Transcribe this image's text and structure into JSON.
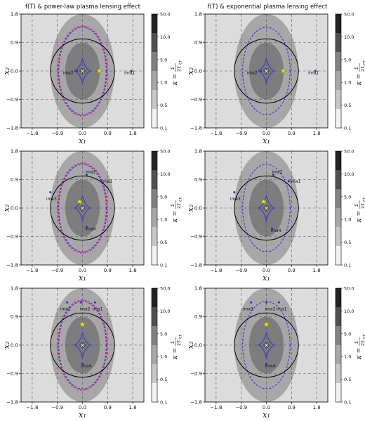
{
  "columns": [
    {
      "title": "f(T) & power-law plasma lensing effect"
    },
    {
      "title": "f(T) & exponential plasma lensing effect"
    }
  ],
  "axes": {
    "xlabel": "x₁",
    "ylabel": "x₂",
    "ticks": [
      "−1.8",
      "−0.9",
      "0.0",
      "0.9",
      "1.8"
    ],
    "tick_values": [
      -1.8,
      -0.9,
      0.0,
      0.9,
      1.8
    ]
  },
  "colorbar": {
    "label": "κ = Σ/Σcr",
    "label_parts": {
      "kappa": "κ =",
      "num": "Σ",
      "den": "2Σ",
      "den_sub": "cr"
    },
    "ticks": [
      "0.1",
      "0.5",
      "1.0",
      "5.0",
      "10.0",
      "50.0"
    ],
    "tick_values": [
      0.1,
      0.5,
      1.0,
      5.0,
      10.0,
      50.0
    ],
    "colors": [
      "#f2f2f2",
      "#c8c8c8",
      "#a8a8a8",
      "#828282",
      "#505050",
      "#222222"
    ]
  },
  "colors": {
    "background": "#dcdcdc",
    "kappa_outer": "#a7a7a7",
    "kappa_inner": "#7d7d7d",
    "kappa_core": "#5a5a5a",
    "caustic": "#3b3bd6",
    "critical_curve_blue": "#2a2ae0",
    "critical_curve_magenta": "#d21f8a",
    "circle": "#000000",
    "source_star": "#e6e600",
    "image_dot": "#2a2ae0"
  },
  "chart_data": [
    {
      "type": "scatter",
      "panel": "row1-left",
      "title": "f(T) & power-law plasma lensing effect",
      "xlabel": "x₁",
      "ylabel": "x₂",
      "xlim": [
        -2.2,
        2.2
      ],
      "ylim": [
        -1.8,
        1.8
      ],
      "grid": true,
      "critical_curves": [
        "blue",
        "magenta"
      ],
      "source": {
        "x": 0.6,
        "y": 0.0
      },
      "images": [
        {
          "label": "ima1",
          "x": 1.75,
          "y": 0.0,
          "label_dx": -0.25,
          "label_dy": -0.1
        },
        {
          "label": "ima2",
          "x": -0.2,
          "y": 0.0,
          "label_dx": -0.5,
          "label_dy": -0.1
        }
      ]
    },
    {
      "type": "scatter",
      "panel": "row1-right",
      "title": "f(T) & exponential plasma lensing effect",
      "xlabel": "x₁",
      "ylabel": "x₂",
      "xlim": [
        -2.2,
        2.2
      ],
      "ylim": [
        -1.8,
        1.8
      ],
      "grid": true,
      "critical_curves": [
        "blue"
      ],
      "source": {
        "x": 0.6,
        "y": 0.0
      },
      "images": [
        {
          "label": "ima1",
          "x": 1.75,
          "y": 0.0,
          "label_dx": -0.25,
          "label_dy": -0.1
        },
        {
          "label": "ima2",
          "x": -0.2,
          "y": 0.0,
          "label_dx": -0.5,
          "label_dy": -0.1
        }
      ]
    },
    {
      "type": "scatter",
      "panel": "row2-left",
      "xlabel": "x₁",
      "ylabel": "x₂",
      "xlim": [
        -2.2,
        2.2
      ],
      "ylim": [
        -1.8,
        1.8
      ],
      "grid": true,
      "critical_curves": [
        "blue",
        "magenta"
      ],
      "source": {
        "x": -0.1,
        "y": 0.2
      },
      "images": [
        {
          "label": "ima1",
          "x": 0.65,
          "y": 0.85,
          "label_dx": 0.05,
          "label_dy": -0.05
        },
        {
          "label": "ima2",
          "x": 0.15,
          "y": 1.05,
          "label_dx": -0.05,
          "label_dy": 0.05
        },
        {
          "label": "ima3",
          "x": -1.15,
          "y": 0.5,
          "label_dx": -0.15,
          "label_dy": -0.25
        },
        {
          "label": "ima4",
          "x": 0.15,
          "y": -0.6,
          "label_dx": -0.05,
          "label_dy": -0.1
        }
      ]
    },
    {
      "type": "scatter",
      "panel": "row2-right",
      "xlabel": "x₁",
      "ylabel": "x₂",
      "xlim": [
        -2.2,
        2.2
      ],
      "ylim": [
        -1.8,
        1.8
      ],
      "grid": true,
      "critical_curves": [
        "blue"
      ],
      "source": {
        "x": -0.1,
        "y": 0.2
      },
      "images": [
        {
          "label": "ima1",
          "x": 0.8,
          "y": 0.85,
          "label_dx": 0.05,
          "label_dy": -0.05
        },
        {
          "label": "ima2",
          "x": 0.25,
          "y": 1.05,
          "label_dx": -0.05,
          "label_dy": 0.05
        },
        {
          "label": "ima3",
          "x": -1.15,
          "y": 0.5,
          "label_dx": -0.15,
          "label_dy": -0.25
        },
        {
          "label": "ima4",
          "x": 0.2,
          "y": -0.65,
          "label_dx": -0.05,
          "label_dy": -0.1
        }
      ]
    },
    {
      "type": "scatter",
      "panel": "row3-left",
      "xlabel": "x₁",
      "ylabel": "x₂",
      "xlim": [
        -2.2,
        2.2
      ],
      "ylim": [
        -1.8,
        1.8
      ],
      "grid": true,
      "critical_curves": [
        "blue",
        "magenta"
      ],
      "source": {
        "x": 0.0,
        "y": 0.65
      },
      "images": [
        {
          "label": "ima1",
          "x": -0.55,
          "y": 1.35,
          "label_dx": -0.25,
          "label_dy": -0.25
        },
        {
          "label": "ima2",
          "x": -0.05,
          "y": 1.35,
          "label_dx": -0.05,
          "label_dy": -0.25
        },
        {
          "label": "ima1",
          "x": 0.45,
          "y": 1.35,
          "label_dx": -0.1,
          "label_dy": -0.25
        },
        {
          "label": "ima4",
          "x": 0.0,
          "y": -0.6,
          "label_dx": -0.05,
          "label_dy": -0.1
        }
      ]
    },
    {
      "type": "scatter",
      "panel": "row3-right",
      "xlabel": "x₁",
      "ylabel": "x₂",
      "xlim": [
        -2.2,
        2.2
      ],
      "ylim": [
        -1.8,
        1.8
      ],
      "grid": true,
      "critical_curves": [
        "blue"
      ],
      "source": {
        "x": 0.0,
        "y": 0.65
      },
      "images": [
        {
          "label": "ima3",
          "x": -0.55,
          "y": 1.35,
          "label_dx": -0.3,
          "label_dy": -0.25
        },
        {
          "label": "ima2",
          "x": 0.0,
          "y": 1.35,
          "label_dx": -0.05,
          "label_dy": -0.25
        },
        {
          "label": "ima1",
          "x": 0.45,
          "y": 1.35,
          "label_dx": -0.1,
          "label_dy": -0.25
        },
        {
          "label": "ima4",
          "x": 0.0,
          "y": -0.6,
          "label_dx": -0.05,
          "label_dy": -0.1
        }
      ]
    }
  ]
}
